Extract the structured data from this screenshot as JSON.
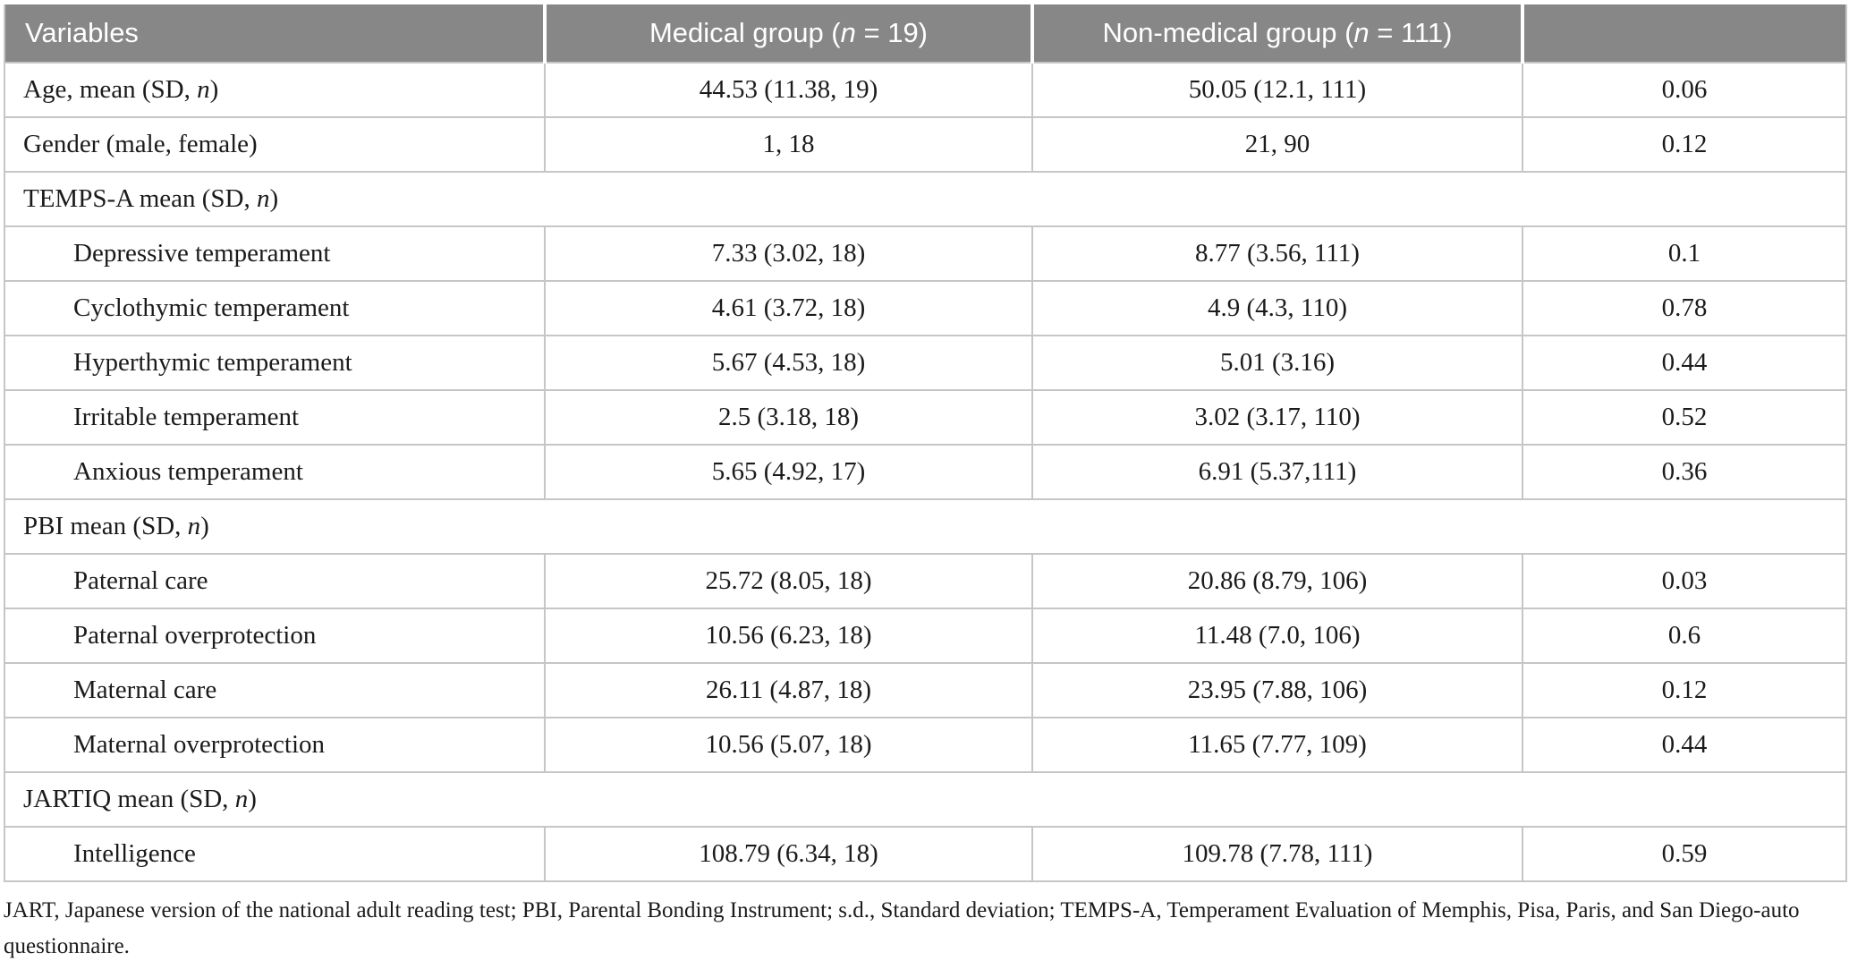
{
  "table": {
    "columns": [
      "Variables",
      "Medical group (n = 19)",
      "Non-medical group (n = 111)",
      ""
    ],
    "rows": [
      {
        "type": "data",
        "indent": false,
        "label": "Age, mean (SD, n)",
        "cells": [
          "44.53 (11.38, 19)",
          "50.05 (12.1, 111)",
          "0.06"
        ]
      },
      {
        "type": "data",
        "indent": false,
        "label": "Gender (male, female)",
        "cells": [
          "1, 18",
          "21, 90",
          "0.12"
        ]
      },
      {
        "type": "section",
        "label": "TEMPS-A mean (SD, n)"
      },
      {
        "type": "data",
        "indent": true,
        "label": "Depressive temperament",
        "cells": [
          "7.33 (3.02, 18)",
          "8.77 (3.56, 111)",
          "0.1"
        ]
      },
      {
        "type": "data",
        "indent": true,
        "label": "Cyclothymic temperament",
        "cells": [
          "4.61 (3.72, 18)",
          "4.9 (4.3, 110)",
          "0.78"
        ]
      },
      {
        "type": "data",
        "indent": true,
        "label": "Hyperthymic temperament",
        "cells": [
          "5.67 (4.53, 18)",
          "5.01 (3.16)",
          "0.44"
        ]
      },
      {
        "type": "data",
        "indent": true,
        "label": "Irritable temperament",
        "cells": [
          "2.5 (3.18, 18)",
          "3.02 (3.17, 110)",
          "0.52"
        ]
      },
      {
        "type": "data",
        "indent": true,
        "label": "Anxious temperament",
        "cells": [
          "5.65 (4.92, 17)",
          "6.91 (5.37,111)",
          "0.36"
        ]
      },
      {
        "type": "section",
        "label": "PBI mean (SD, n)"
      },
      {
        "type": "data",
        "indent": true,
        "label": "Paternal care",
        "cells": [
          "25.72 (8.05, 18)",
          "20.86 (8.79, 106)",
          "0.03"
        ]
      },
      {
        "type": "data",
        "indent": true,
        "label": "Paternal overprotection",
        "cells": [
          "10.56 (6.23, 18)",
          "11.48 (7.0, 106)",
          "0.6"
        ]
      },
      {
        "type": "data",
        "indent": true,
        "label": "Maternal care",
        "cells": [
          "26.11 (4.87, 18)",
          "23.95 (7.88, 106)",
          "0.12"
        ]
      },
      {
        "type": "data",
        "indent": true,
        "label": "Maternal overprotection",
        "cells": [
          "10.56 (5.07, 18)",
          "11.65 (7.77, 109)",
          "0.44"
        ]
      },
      {
        "type": "section",
        "label": "JARTIQ mean (SD, n)"
      },
      {
        "type": "data",
        "indent": true,
        "label": "Intelligence",
        "cells": [
          "108.79 (6.34, 18)",
          "109.78 (7.78, 111)",
          "0.59"
        ]
      }
    ],
    "footnote": "JART, Japanese version of the national adult reading test; PBI, Parental Bonding Instrument; s.d., Standard deviation; TEMPS-A, Temperament Evaluation of Memphis, Pisa, Paris, and San Diego-auto questionnaire."
  },
  "colors": {
    "header_bg": "#878787",
    "header_text": "#ffffff",
    "grid_line": "#c6c6c6",
    "body_text": "#1b1b1b"
  }
}
